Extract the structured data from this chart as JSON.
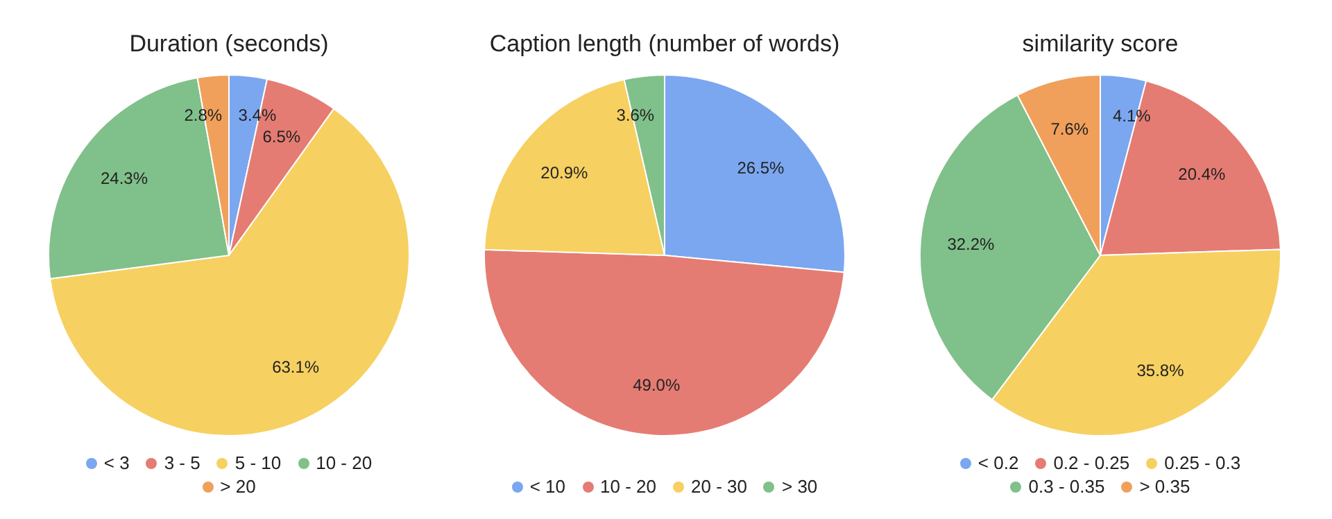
{
  "chart_data": [
    {
      "type": "pie",
      "title": "Duration (seconds)",
      "categories": [
        "< 3",
        "3 - 5",
        "5 - 10",
        "10 - 20",
        "> 20"
      ],
      "values": [
        3.4,
        6.5,
        63.1,
        24.3,
        2.8
      ],
      "colors": [
        "#7ba7f0",
        "#e57c73",
        "#f6d061",
        "#80c08a",
        "#f0a05b"
      ],
      "value_labels": [
        "3.4%",
        "6.5%",
        "63.1%",
        "24.3%",
        "2.8%"
      ],
      "legend": "bottom"
    },
    {
      "type": "pie",
      "title": "Caption length (number of words)",
      "categories": [
        "< 10",
        "10 - 20",
        "20 - 30",
        "> 30"
      ],
      "values": [
        26.5,
        49.0,
        20.9,
        3.6
      ],
      "colors": [
        "#7ba7f0",
        "#e57c73",
        "#f6d061",
        "#80c08a"
      ],
      "value_labels": [
        "26.5%",
        "49.0%",
        "20.9%",
        "3.6%"
      ],
      "legend": "bottom"
    },
    {
      "type": "pie",
      "title": "similarity score",
      "categories": [
        "< 0.2",
        "0.2 - 0.25",
        "0.25 - 0.3",
        "0.3 - 0.35",
        "> 0.35"
      ],
      "values": [
        4.1,
        20.4,
        35.8,
        32.2,
        7.6
      ],
      "colors": [
        "#7ba7f0",
        "#e57c73",
        "#f6d061",
        "#80c08a",
        "#f0a05b"
      ],
      "value_labels": [
        "4.1%",
        "20.4%",
        "35.8%",
        "32.2%",
        "7.6%"
      ],
      "legend": "bottom"
    }
  ]
}
